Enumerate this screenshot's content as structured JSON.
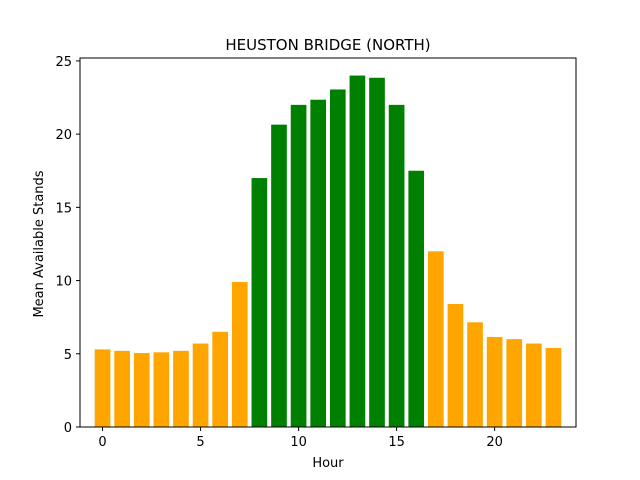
{
  "chart_data": {
    "type": "bar",
    "title": "HEUSTON BRIDGE (NORTH)",
    "xlabel": "Hour",
    "ylabel": "Mean Available Stands",
    "x": [
      0,
      1,
      2,
      3,
      4,
      5,
      6,
      7,
      8,
      9,
      10,
      11,
      12,
      13,
      14,
      15,
      16,
      17,
      18,
      19,
      20,
      21,
      22,
      23
    ],
    "values": [
      5.3,
      5.2,
      5.05,
      5.1,
      5.2,
      5.7,
      6.5,
      9.9,
      17.0,
      20.65,
      22.0,
      22.35,
      23.05,
      24.0,
      23.85,
      22.0,
      17.5,
      12.0,
      8.4,
      7.15,
      6.15,
      6.0,
      5.7,
      5.4
    ],
    "colors": [
      "#ffa500",
      "#ffa500",
      "#ffa500",
      "#ffa500",
      "#ffa500",
      "#ffa500",
      "#ffa500",
      "#ffa500",
      "#008000",
      "#008000",
      "#008000",
      "#008000",
      "#008000",
      "#008000",
      "#008000",
      "#008000",
      "#008000",
      "#ffa500",
      "#ffa500",
      "#ffa500",
      "#ffa500",
      "#ffa500",
      "#ffa500",
      "#ffa500"
    ],
    "xticks": [
      0,
      5,
      10,
      15,
      20
    ],
    "yticks": [
      0,
      5,
      10,
      15,
      20,
      25
    ],
    "xlim": [
      -1.15,
      24.15
    ],
    "ylim": [
      0,
      25.2
    ],
    "grid": false,
    "legend": null
  }
}
